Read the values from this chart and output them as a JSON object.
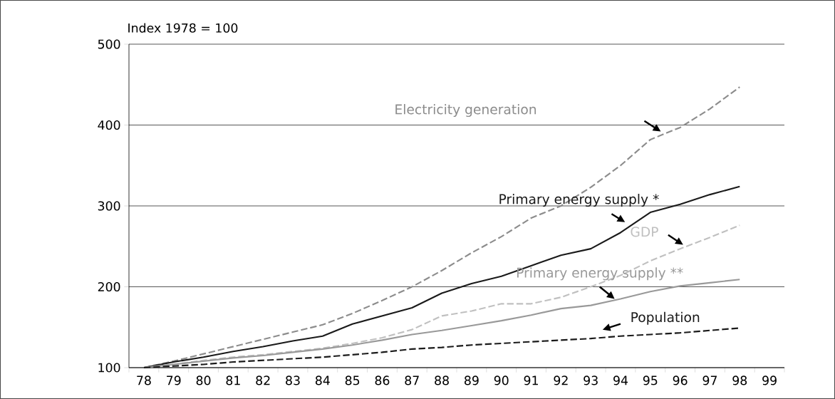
{
  "chart_data": {
    "type": "line",
    "ylabel": "Index 1978 = 100",
    "categories": [
      "78",
      "79",
      "80",
      "81",
      "82",
      "83",
      "84",
      "85",
      "86",
      "87",
      "88",
      "89",
      "90",
      "91",
      "92",
      "93",
      "94",
      "95",
      "96",
      "97",
      "98",
      "99"
    ],
    "ylim": [
      100,
      500
    ],
    "yticks": [
      100,
      200,
      300,
      400,
      500
    ],
    "grid": "y",
    "marker": "none",
    "series": [
      {
        "name": "Electricity generation",
        "color": "#8c8c8c",
        "line_style": "dashed",
        "values": [
          100,
          108,
          117,
          126,
          135,
          144,
          153,
          167,
          183,
          200,
          220,
          242,
          262,
          285,
          300,
          323,
          350,
          382,
          397,
          420,
          447,
          null
        ]
      },
      {
        "name": "Primary energy supply *",
        "color": "#1a1a1a",
        "line_style": "solid",
        "values": [
          100,
          107,
          113,
          120,
          126,
          133,
          139,
          154,
          164,
          174,
          192,
          204,
          213,
          226,
          239,
          247,
          267,
          292,
          302,
          314,
          324,
          null
        ]
      },
      {
        "name": "GDP",
        "color": "#c0c0c0",
        "line_style": "dashed",
        "values": [
          100,
          104,
          109,
          113,
          116,
          120,
          124,
          130,
          137,
          147,
          164,
          170,
          179,
          179,
          187,
          200,
          214,
          232,
          247,
          261,
          276,
          null
        ]
      },
      {
        "name": "Primary energy supply **",
        "color": "#999999",
        "line_style": "solid",
        "values": [
          100,
          104,
          108,
          112,
          115,
          119,
          123,
          128,
          134,
          141,
          146,
          152,
          158,
          165,
          173,
          177,
          185,
          194,
          201,
          205,
          209,
          null
        ]
      },
      {
        "name": "Population",
        "color": "#1a1a1a",
        "line_style": "dashed",
        "values": [
          100,
          102,
          104,
          107,
          109,
          111,
          113,
          116,
          119,
          123,
          125,
          128,
          130,
          132,
          134,
          136,
          139,
          141,
          143,
          146,
          149,
          null
        ]
      }
    ]
  }
}
